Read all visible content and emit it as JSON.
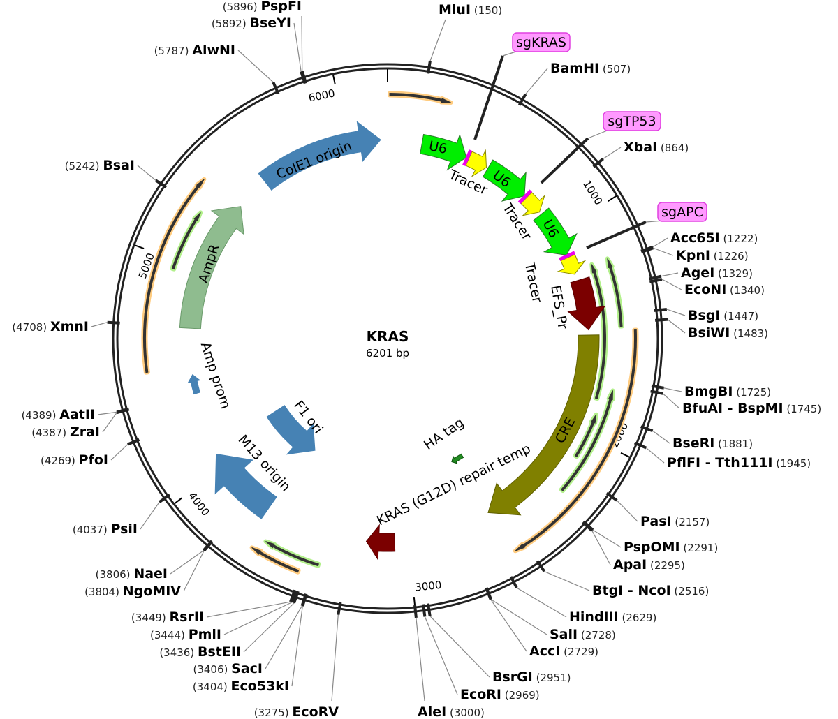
{
  "plasmid": {
    "name": "KRAS",
    "length_label": "6201 bp",
    "length_bp": 6201
  },
  "ticks": [
    "1000",
    "2000",
    "3000",
    "4000",
    "5000",
    "6000"
  ],
  "sites": [
    {
      "name": "MluI",
      "pos": 150
    },
    {
      "name": "BamHI",
      "pos": 507
    },
    {
      "name": "XbaI",
      "pos": 864
    },
    {
      "name": "Acc65I",
      "pos": 1222
    },
    {
      "name": "KpnI",
      "pos": 1226
    },
    {
      "name": "AgeI",
      "pos": 1329
    },
    {
      "name": "EcoNI",
      "pos": 1340
    },
    {
      "name": "BsgI",
      "pos": 1447
    },
    {
      "name": "BsiWI",
      "pos": 1483
    },
    {
      "name": "BmgBI",
      "pos": 1725
    },
    {
      "name": "BfuAI - BspMI",
      "pos": 1745
    },
    {
      "name": "BseRI",
      "pos": 1881
    },
    {
      "name": "PflFI - Tth111I",
      "pos": 1945
    },
    {
      "name": "PasI",
      "pos": 2157
    },
    {
      "name": "PspOMI",
      "pos": 2291
    },
    {
      "name": "ApaI",
      "pos": 2295
    },
    {
      "name": "BtgI - NcoI",
      "pos": 2516
    },
    {
      "name": "HindIII",
      "pos": 2629
    },
    {
      "name": "SalI",
      "pos": 2728
    },
    {
      "name": "AccI",
      "pos": 2729
    },
    {
      "name": "BsrGI",
      "pos": 2951
    },
    {
      "name": "EcoRI",
      "pos": 2969
    },
    {
      "name": "AleI",
      "pos": 3000
    },
    {
      "name": "EcoRV",
      "pos": 3275
    },
    {
      "name": "Eco53kI",
      "pos": 3404
    },
    {
      "name": "SacI",
      "pos": 3406
    },
    {
      "name": "BstEII",
      "pos": 3436
    },
    {
      "name": "PmlI",
      "pos": 3444
    },
    {
      "name": "RsrII",
      "pos": 3449
    },
    {
      "name": "NgoMIV",
      "pos": 3804
    },
    {
      "name": "NaeI",
      "pos": 3806
    },
    {
      "name": "PsiI",
      "pos": 4037
    },
    {
      "name": "PfoI",
      "pos": 4269
    },
    {
      "name": "ZraI",
      "pos": 4387
    },
    {
      "name": "AatII",
      "pos": 4389
    },
    {
      "name": "XmnI",
      "pos": 4708
    },
    {
      "name": "BsaI",
      "pos": 5242
    },
    {
      "name": "AlwNI",
      "pos": 5787
    },
    {
      "name": "BseYI",
      "pos": 5892
    },
    {
      "name": "PspFI",
      "pos": 5896
    }
  ],
  "sgRNAs": [
    {
      "label": "sgKRAS",
      "color": "#ff99ff"
    },
    {
      "label": "sgTP53",
      "color": "#ff99ff"
    },
    {
      "label": "sgAPC",
      "color": "#ff99ff"
    }
  ],
  "features": [
    {
      "label": "ColE1 origin",
      "color": "#4682b4"
    },
    {
      "label": "AmpR",
      "color": "#8fbc8f"
    },
    {
      "label": "Amp prom",
      "color": "#4682b4"
    },
    {
      "label": "F1 ori",
      "color": "#4682b4"
    },
    {
      "label": "M13 origin",
      "color": "#4682b4"
    },
    {
      "label": "U6",
      "color": "#00ee00"
    },
    {
      "label": "U6",
      "color": "#00ee00"
    },
    {
      "label": "U6",
      "color": "#00ee00"
    },
    {
      "label": "Tracer",
      "color": "#ffff00"
    },
    {
      "label": "Tracer",
      "color": "#ffff00"
    },
    {
      "label": "Tracer",
      "color": "#ffff00"
    },
    {
      "label": "EFS_Pr",
      "color": "#7b0000"
    },
    {
      "label": "CRE",
      "color": "#808000"
    },
    {
      "label": "KRAS (G12D) repair temp",
      "color": "#7b0000"
    },
    {
      "label": "HA tag",
      "color": "#228b22"
    }
  ],
  "colors": {
    "spacer": "#ee00ee",
    "primer_halo": "#ffcc80",
    "green_halo": "#b3f08c",
    "ring": "#222222"
  }
}
